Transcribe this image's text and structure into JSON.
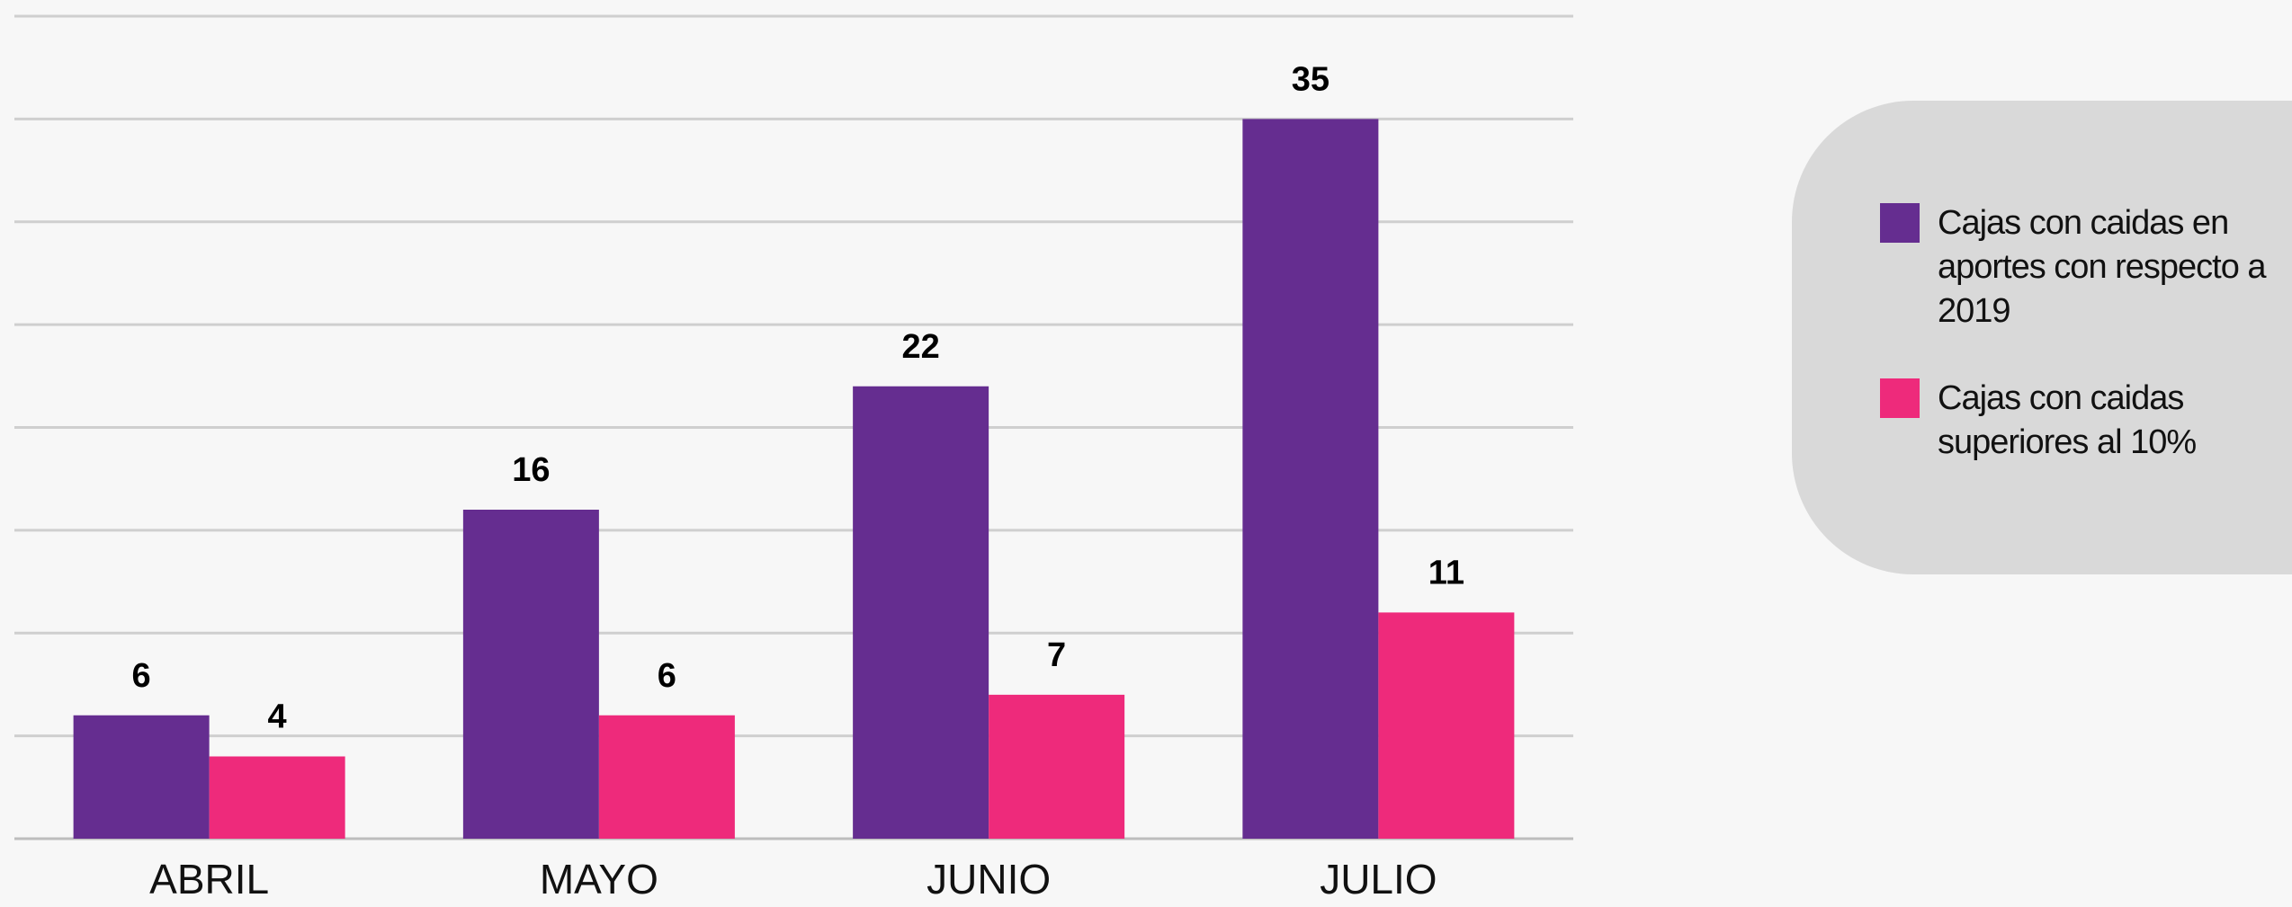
{
  "chart_data": {
    "type": "bar",
    "categories": [
      "ABRIL",
      "MAYO",
      "JUNIO",
      "JULIO"
    ],
    "series": [
      {
        "name": "Cajas con caidas en aportes con respecto a  2019",
        "color": "#652d90",
        "values": [
          6,
          16,
          22,
          35
        ]
      },
      {
        "name": "Cajas con caidas superiores al 10%",
        "color": "#ee2a7b",
        "values": [
          4,
          6,
          7,
          11
        ]
      }
    ],
    "ylim": [
      0,
      40
    ],
    "yticks": [
      0,
      5,
      10,
      15,
      20,
      25,
      30,
      35,
      40
    ],
    "grid": true,
    "legend": "right"
  }
}
